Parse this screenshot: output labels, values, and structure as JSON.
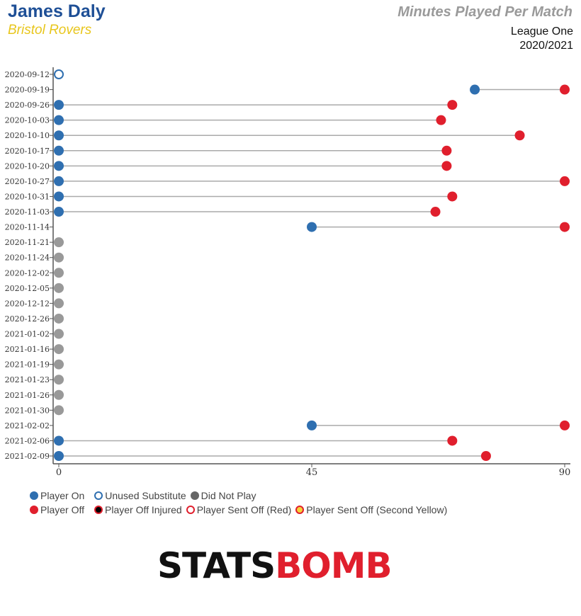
{
  "header": {
    "player_name": "James Daly",
    "club_name": "Bristol Rovers",
    "chart_title": "Minutes Played Per Match",
    "competition": "League One",
    "season": "2020/2021"
  },
  "colors": {
    "player_on": "#2f6fb0",
    "player_off": "#e01f2d",
    "unused_sub": "#2f6fb0",
    "did_not_play": "#999999",
    "injured": "#000000",
    "second_yellow": "#f5d33a",
    "line": "#aaaaaa",
    "axis": "#555555"
  },
  "legend": {
    "player_on": "Player On",
    "unused_substitute": "Unused Substitute",
    "did_not_play": "Did Not Play",
    "player_off": "Player Off",
    "player_off_injured": "Player Off Injured",
    "player_sent_off_red": "Player Sent Off (Red)",
    "player_sent_off_second_yellow": "Player Sent Off (Second Yellow)"
  },
  "logo": {
    "part1": "STATS",
    "part2": "BOMB"
  },
  "chart_data": {
    "type": "scatter",
    "title": "Minutes Played Per Match",
    "xlabel": "",
    "ylabel": "",
    "xlim": [
      0,
      90
    ],
    "x_ticks": [
      0,
      45,
      90
    ],
    "matches": [
      {
        "date": "2020-09-12",
        "status": "unused_sub",
        "on": 0,
        "off": null
      },
      {
        "date": "2020-09-19",
        "status": "played",
        "on": 74,
        "off": 90
      },
      {
        "date": "2020-09-26",
        "status": "played",
        "on": 0,
        "off": 70
      },
      {
        "date": "2020-10-03",
        "status": "played",
        "on": 0,
        "off": 68
      },
      {
        "date": "2020-10-10",
        "status": "played",
        "on": 0,
        "off": 82
      },
      {
        "date": "2020-10-17",
        "status": "played",
        "on": 0,
        "off": 69
      },
      {
        "date": "2020-10-20",
        "status": "played",
        "on": 0,
        "off": 69
      },
      {
        "date": "2020-10-27",
        "status": "played",
        "on": 0,
        "off": 90
      },
      {
        "date": "2020-10-31",
        "status": "played",
        "on": 0,
        "off": 70
      },
      {
        "date": "2020-11-03",
        "status": "played",
        "on": 0,
        "off": 67
      },
      {
        "date": "2020-11-14",
        "status": "played",
        "on": 45,
        "off": 90
      },
      {
        "date": "2020-11-21",
        "status": "did_not_play",
        "on": 0,
        "off": null
      },
      {
        "date": "2020-11-24",
        "status": "did_not_play",
        "on": 0,
        "off": null
      },
      {
        "date": "2020-12-02",
        "status": "did_not_play",
        "on": 0,
        "off": null
      },
      {
        "date": "2020-12-05",
        "status": "did_not_play",
        "on": 0,
        "off": null
      },
      {
        "date": "2020-12-12",
        "status": "did_not_play",
        "on": 0,
        "off": null
      },
      {
        "date": "2020-12-26",
        "status": "did_not_play",
        "on": 0,
        "off": null
      },
      {
        "date": "2021-01-02",
        "status": "did_not_play",
        "on": 0,
        "off": null
      },
      {
        "date": "2021-01-16",
        "status": "did_not_play",
        "on": 0,
        "off": null
      },
      {
        "date": "2021-01-19",
        "status": "did_not_play",
        "on": 0,
        "off": null
      },
      {
        "date": "2021-01-23",
        "status": "did_not_play",
        "on": 0,
        "off": null
      },
      {
        "date": "2021-01-26",
        "status": "did_not_play",
        "on": 0,
        "off": null
      },
      {
        "date": "2021-01-30",
        "status": "did_not_play",
        "on": 0,
        "off": null
      },
      {
        "date": "2021-02-02",
        "status": "played",
        "on": 45,
        "off": 90
      },
      {
        "date": "2021-02-06",
        "status": "played",
        "on": 0,
        "off": 70
      },
      {
        "date": "2021-02-09",
        "status": "played",
        "on": 0,
        "off": 76
      }
    ]
  }
}
